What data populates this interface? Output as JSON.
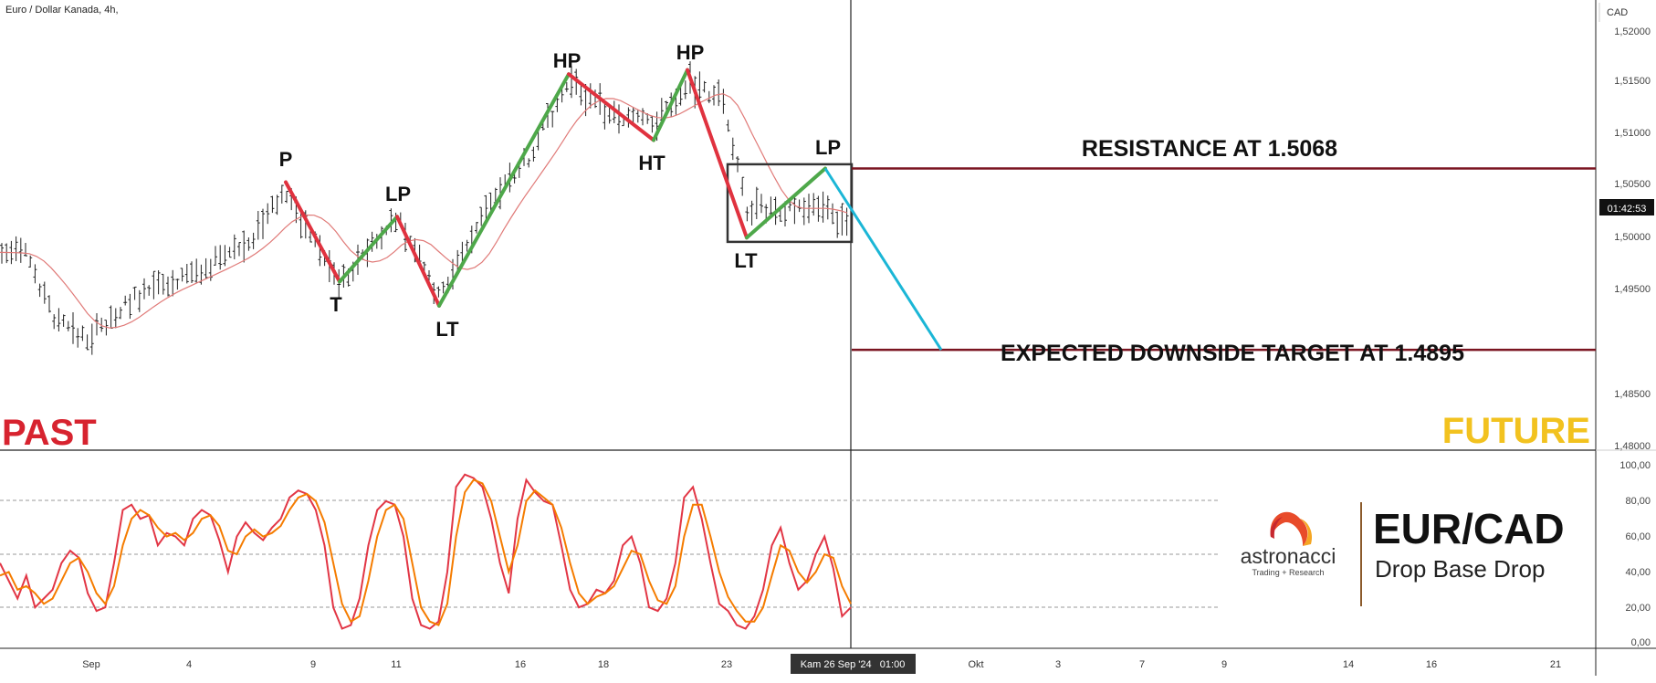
{
  "symbol_title": "Euro / Dollar Kanada, 4h,",
  "currency": "CAD",
  "countdown": "01:42:53",
  "cursor_time": "Kam 26 Sep '24   01:00",
  "colors": {
    "up_leg": "#4ea84a",
    "down_leg": "#e0323f",
    "projection": "#1bb6d6",
    "level_line": "#7a1420",
    "past": "#d7232f",
    "future": "#f2c21f",
    "ma": "#e07a78",
    "k_line": "#e23645",
    "d_line": "#f57c00"
  },
  "chart_data": [
    {
      "type": "line",
      "name": "price",
      "x_ticks": [
        "Sep",
        "4",
        "9",
        "11",
        "16",
        "18",
        "23",
        "Okt",
        "3",
        "7",
        "9",
        "14",
        "16",
        "21"
      ],
      "y_ticks": [
        "1,52000",
        "1,51500",
        "1,51000",
        "1,50500",
        "1,50000",
        "1,49500",
        "1,48500",
        "1,48000"
      ],
      "ylim": [
        1.48,
        1.521
      ],
      "swing_points": [
        {
          "label": "P",
          "y": 1.5055
        },
        {
          "label": "T",
          "y": 1.496
        },
        {
          "label": "LP",
          "y": 1.5022
        },
        {
          "label": "LT",
          "y": 1.4937
        },
        {
          "label": "HP",
          "y": 1.5158
        },
        {
          "label": "HT",
          "y": 1.5095
        },
        {
          "label": "HP",
          "y": 1.5162
        },
        {
          "label": "LT",
          "y": 1.5002
        },
        {
          "label": "LP",
          "y": 1.5068
        }
      ],
      "projection": {
        "from": 1.5068,
        "to": 1.4895
      },
      "levels": [
        {
          "label": "RESISTANCE AT 1.5068",
          "value": 1.5068
        },
        {
          "label": "EXPECTED DOWNSIDE TARGET AT 1.4895",
          "value": 1.4895
        }
      ],
      "base_box": {
        "low": 1.4998,
        "high": 1.5072
      },
      "past_label": "PAST",
      "future_label": "FUTURE"
    },
    {
      "type": "line",
      "name": "stochastic",
      "y_ticks": [
        "100,00",
        "80,00",
        "60,00",
        "40,00",
        "20,00",
        "0,00"
      ],
      "ylim": [
        0,
        100
      ],
      "levels": [
        80,
        50,
        20
      ],
      "k": [
        45,
        35,
        25,
        38,
        20,
        25,
        30,
        45,
        52,
        48,
        28,
        18,
        20,
        45,
        75,
        78,
        70,
        72,
        55,
        62,
        60,
        55,
        70,
        75,
        72,
        58,
        40,
        60,
        68,
        62,
        58,
        65,
        70,
        82,
        86,
        84,
        75,
        55,
        20,
        8,
        10,
        25,
        55,
        75,
        80,
        78,
        60,
        25,
        10,
        8,
        12,
        40,
        88,
        95,
        93,
        88,
        70,
        45,
        28,
        70,
        92,
        85,
        80,
        78,
        55,
        30,
        20,
        22,
        30,
        28,
        35,
        55,
        60,
        45,
        20,
        18,
        25,
        45,
        82,
        88,
        70,
        45,
        22,
        18,
        10,
        8,
        15,
        30,
        55,
        65,
        45,
        30,
        35,
        50,
        60,
        42,
        15,
        20
      ],
      "d": [
        38,
        40,
        30,
        32,
        28,
        22,
        25,
        35,
        45,
        48,
        40,
        28,
        22,
        32,
        55,
        70,
        75,
        72,
        65,
        60,
        62,
        58,
        62,
        70,
        72,
        66,
        52,
        50,
        60,
        64,
        60,
        62,
        66,
        75,
        82,
        84,
        80,
        68,
        45,
        22,
        12,
        15,
        35,
        60,
        75,
        78,
        70,
        45,
        20,
        12,
        10,
        22,
        60,
        85,
        92,
        90,
        80,
        60,
        40,
        55,
        80,
        86,
        82,
        78,
        65,
        45,
        28,
        22,
        26,
        28,
        32,
        42,
        52,
        50,
        35,
        24,
        22,
        32,
        60,
        78,
        78,
        60,
        40,
        26,
        18,
        12,
        12,
        20,
        38,
        55,
        52,
        40,
        34,
        40,
        50,
        48,
        32,
        22
      ]
    }
  ],
  "brand": {
    "name": "astronacci",
    "tagline": "Trading + Research",
    "pair": "EUR/CAD",
    "setup": "Drop Base Drop"
  }
}
